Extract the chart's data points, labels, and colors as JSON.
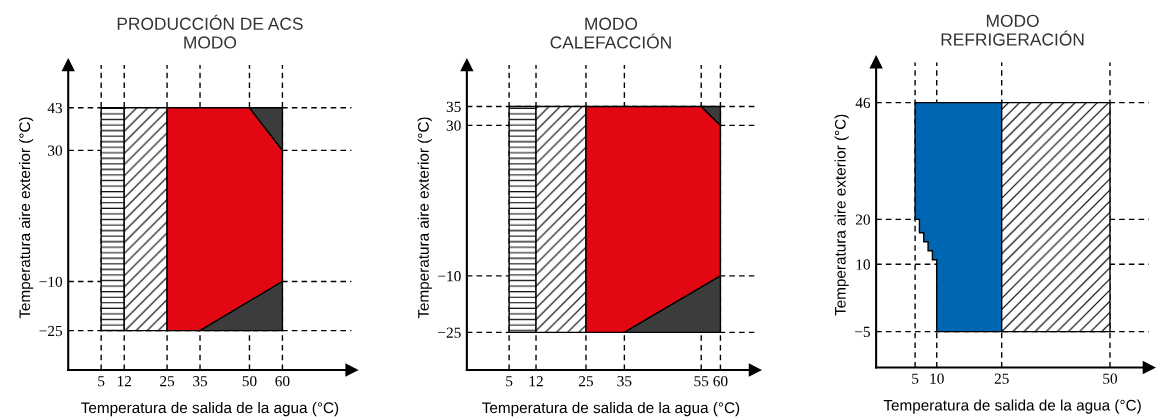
{
  "chart_data": [
    {
      "type": "area",
      "title": "PRODUCCIÓN DE ACS\nMODO",
      "xlabel": "Temperatura de salida de la agua (°C)",
      "ylabel": "Temperatura aire exterior (°C)",
      "xlim": [
        -5,
        81
      ],
      "ylim": [
        -37,
        56
      ],
      "xticks": [
        5,
        12,
        25,
        35,
        50,
        60
      ],
      "yticks": [
        -25,
        -10,
        30,
        43
      ],
      "grid": true,
      "series": [
        {
          "color": "#000000",
          "x": [
            5,
            5,
            12,
            12
          ],
          "values": [
            -25,
            43,
            43,
            -25
          ]
        },
        {
          "color": "#000000",
          "x": [
            12,
            12,
            25,
            25
          ],
          "values": [
            -25,
            43,
            43,
            -25
          ]
        },
        {
          "color": "#e30613",
          "x": [
            25,
            25,
            50,
            60,
            60,
            35
          ],
          "values": [
            -25,
            43,
            43,
            30,
            -10,
            -25
          ]
        },
        {
          "color": "#3c3c3c",
          "x": [
            35,
            60,
            60
          ],
          "values": [
            -25,
            -10,
            -25
          ]
        },
        {
          "color": "#3c3c3c",
          "x": [
            50,
            60,
            60
          ],
          "values": [
            43,
            43,
            30
          ]
        }
      ]
    },
    {
      "type": "area",
      "title": "MODO\nCALEFACCIÓN",
      "xlabel": "Temperatura de salida de la agua (°C)",
      "ylabel": "Temperatura aire exterior (°C)",
      "xlim": [
        -6,
        69
      ],
      "ylim": [
        -35,
        46
      ],
      "xticks": [
        5,
        12,
        25,
        35,
        55,
        60
      ],
      "yticks": [
        -25,
        -10,
        30,
        35
      ],
      "grid": true,
      "series": [
        {
          "color": "#000000",
          "x": [
            5,
            5,
            12,
            12
          ],
          "values": [
            -25,
            35,
            35,
            -25
          ]
        },
        {
          "color": "#000000",
          "x": [
            12,
            12,
            25,
            25
          ],
          "values": [
            -25,
            35,
            35,
            -25
          ]
        },
        {
          "color": "#e30613",
          "x": [
            25,
            25,
            55,
            60,
            60,
            35
          ],
          "values": [
            -25,
            35,
            35,
            30,
            -10,
            -25
          ]
        },
        {
          "color": "#3c3c3c",
          "x": [
            35,
            60,
            60
          ],
          "values": [
            -25,
            -10,
            -25
          ]
        },
        {
          "color": "#3c3c3c",
          "x": [
            55,
            60,
            60
          ],
          "values": [
            35,
            35,
            30
          ]
        }
      ]
    },
    {
      "type": "area",
      "title": "MODO\nREFRIGERACIÓN",
      "xlabel": "Temperatura de salida de la agua (°C)",
      "ylabel": "Temperatura aire exterior (°C)",
      "xlim": [
        -4,
        59
      ],
      "ylim": [
        -13,
        55
      ],
      "xticks": [
        5,
        10,
        25,
        50
      ],
      "yticks": [
        -5,
        10,
        20,
        46
      ],
      "grid": true,
      "series": [
        {
          "color": "#0066b3",
          "x": [
            5,
            5,
            6,
            6,
            7,
            7,
            8,
            8,
            9,
            9,
            10,
            10,
            25,
            25
          ],
          "values": [
            46,
            20,
            20,
            17,
            17,
            15,
            15,
            13,
            13,
            11,
            11,
            -5,
            -5,
            46
          ]
        },
        {
          "color": "#000000",
          "x": [
            25,
            25,
            50,
            50
          ],
          "values": [
            -5,
            46,
            46,
            -5
          ]
        }
      ]
    }
  ]
}
